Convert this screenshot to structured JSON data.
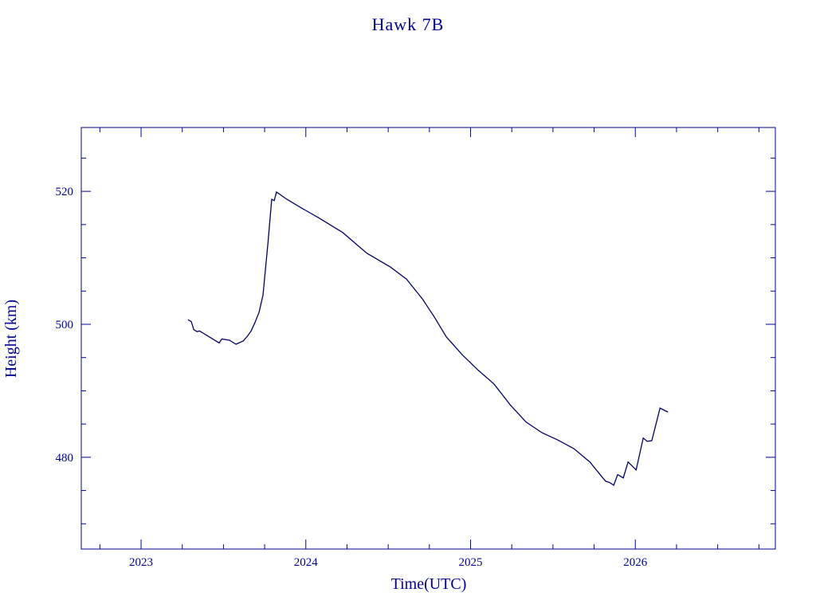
{
  "chart_data": {
    "type": "line",
    "title": "Hawk 7B",
    "xlabel": "Time(UTC)",
    "ylabel": "Height (km)",
    "x": [
      2023.285,
      2023.305,
      2023.32,
      2023.34,
      2023.355,
      2023.474,
      2023.49,
      2023.537,
      2023.576,
      2023.62,
      2023.645,
      2023.668,
      2023.69,
      2023.716,
      2023.74,
      2023.77,
      2023.793,
      2023.808,
      2023.822,
      2023.885,
      2023.98,
      2024.079,
      2024.224,
      2024.37,
      2024.514,
      2024.611,
      2024.708,
      2024.78,
      2024.853,
      2024.95,
      2025.046,
      2025.143,
      2025.24,
      2025.337,
      2025.433,
      2025.53,
      2025.627,
      2025.724,
      2025.796,
      2025.82,
      2025.845,
      2025.869,
      2025.893,
      2025.927,
      2025.956,
      2026.005,
      2026.048,
      2026.072,
      2026.1,
      2026.15,
      2026.198
    ],
    "series": [
      {
        "name": "Height",
        "color": "#000066",
        "values": [
          500.7,
          500.4,
          499.2,
          498.9,
          499.0,
          497.2,
          497.8,
          497.6,
          497.0,
          497.5,
          498.2,
          499.0,
          500.2,
          501.8,
          504.4,
          512.2,
          518.8,
          518.6,
          519.9,
          518.8,
          517.4,
          516.0,
          513.8,
          510.7,
          508.6,
          506.8,
          503.8,
          501.1,
          498.1,
          495.4,
          493.1,
          491.0,
          487.9,
          485.3,
          483.7,
          482.6,
          481.3,
          479.3,
          477.1,
          476.4,
          476.2,
          475.8,
          477.4,
          476.9,
          479.3,
          478.1,
          482.9,
          482.4,
          482.5,
          487.4,
          486.8
        ]
      }
    ],
    "xlim": [
      2022.637,
      2026.85
    ],
    "xticks": [
      2023,
      2024,
      2025,
      2026
    ],
    "xminor_ticks": [
      2022.75,
      2023.25,
      2023.5,
      2023.75,
      2024.25,
      2024.5,
      2024.75,
      2025.25,
      2025.5,
      2025.75,
      2026.25,
      2026.5,
      2026.75
    ],
    "ylim": [
      466.2,
      529.6
    ],
    "yticks": [
      480,
      500,
      520
    ],
    "yminor_ticks": [
      470,
      475,
      485,
      490,
      495,
      505,
      510,
      515,
      525
    ],
    "color": "#000099"
  }
}
